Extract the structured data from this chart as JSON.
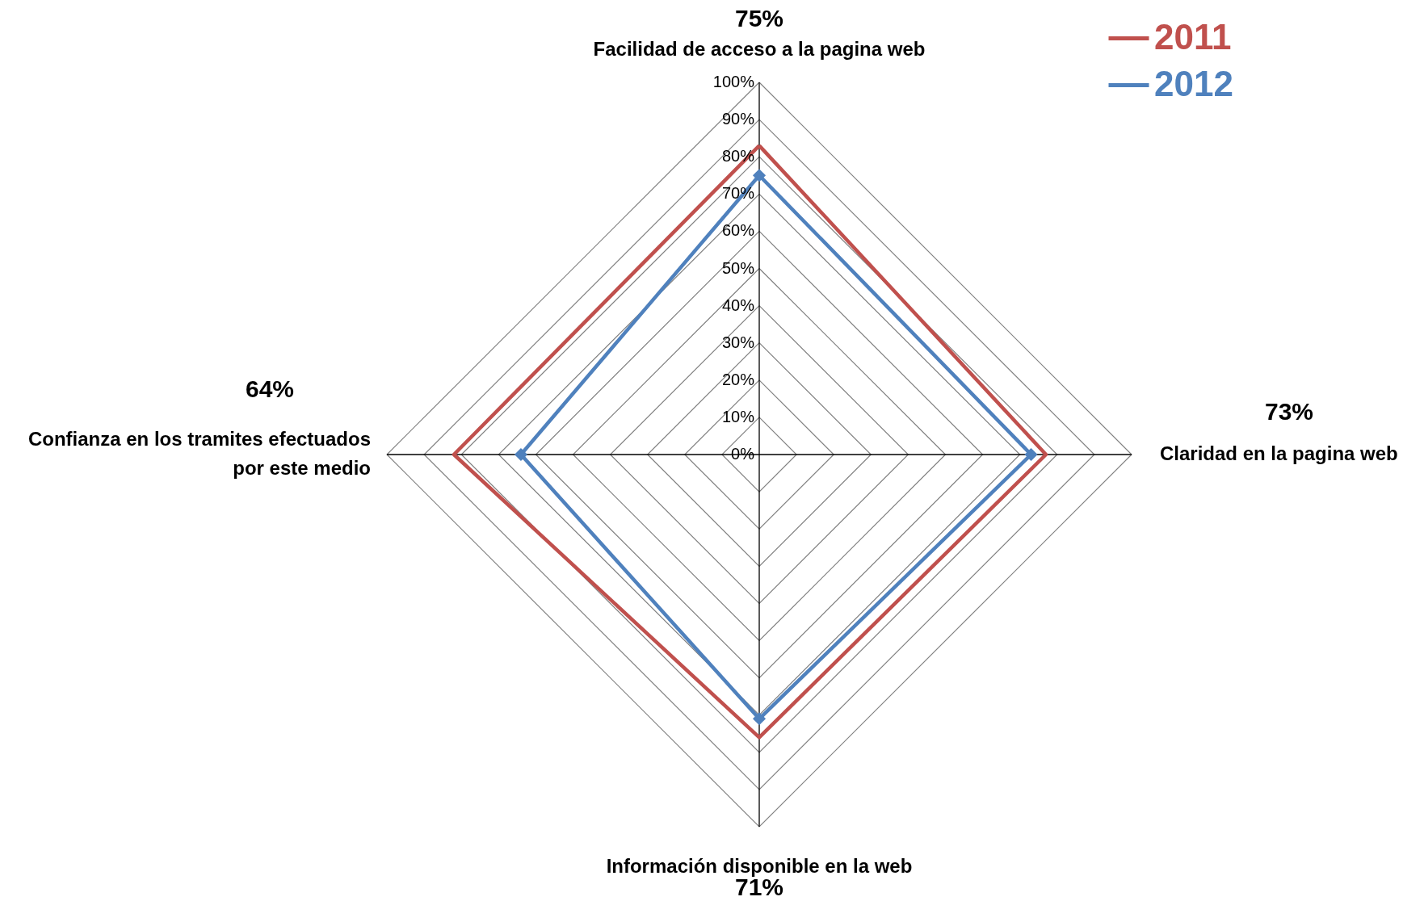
{
  "chart_data": {
    "type": "radar",
    "categories": [
      "Facilidad de acceso a la pagina web",
      "Claridad en la pagina web",
      "Información disponible en la web",
      "Confianza en los tramites efectuados por este medio"
    ],
    "series": [
      {
        "name": "2011",
        "color": "#c0504d",
        "values": [
          83,
          77,
          76,
          82
        ],
        "marker": "none"
      },
      {
        "name": "2012",
        "color": "#4f81bd",
        "values": [
          75,
          73,
          71,
          64
        ],
        "marker": "diamond"
      }
    ],
    "annotations": [
      "75%",
      "73%",
      "71%",
      "64%"
    ],
    "ylim": [
      0,
      100
    ],
    "yticks": [
      {
        "value": 0,
        "label": "0%"
      },
      {
        "value": 10,
        "label": "10%"
      },
      {
        "value": 20,
        "label": "20%"
      },
      {
        "value": 30,
        "label": "30%"
      },
      {
        "value": 40,
        "label": "40%"
      },
      {
        "value": 50,
        "label": "50%"
      },
      {
        "value": 60,
        "label": "60%"
      },
      {
        "value": 70,
        "label": "70%"
      },
      {
        "value": 80,
        "label": "80%"
      },
      {
        "value": 90,
        "label": "90%"
      },
      {
        "value": 100,
        "label": "100%"
      }
    ],
    "grid": true,
    "legend": "top right"
  }
}
